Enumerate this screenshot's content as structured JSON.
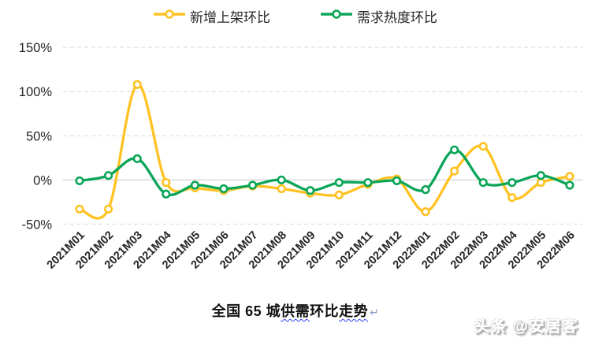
{
  "chart_data": {
    "type": "line",
    "title": "全国 65 城供需环比走势",
    "xlabel": "",
    "ylabel": "",
    "ylim": [
      -50,
      150
    ],
    "ytick_labels": [
      "150%",
      "100%",
      "50%",
      "0%",
      "-50%"
    ],
    "ytick_values": [
      150,
      100,
      50,
      0,
      -50
    ],
    "grid": "horizontal-dashed",
    "legend_position": "top-center",
    "line_style": "smooth-with-open-circle-markers",
    "categories": [
      "2021M01",
      "2021M02",
      "2021M03",
      "2021M04",
      "2021M05",
      "2021M06",
      "2021M07",
      "2021M08",
      "2021M09",
      "2021M10",
      "2021M11",
      "2021M12",
      "2022M01",
      "2022M02",
      "2022M03",
      "2022M04",
      "2022M05",
      "2022M06"
    ],
    "series": [
      {
        "name": "新增上架环比",
        "color": "#FFC222",
        "values": [
          -33,
          -33,
          108,
          -3,
          -9,
          -12,
          -7,
          -10,
          -15,
          -17,
          -5,
          1,
          -36,
          10,
          38,
          -20,
          -3,
          4
        ]
      },
      {
        "name": "需求热度环比",
        "color": "#0BA558",
        "values": [
          -1,
          5,
          24,
          -16,
          -6,
          -10,
          -6,
          0,
          -12,
          -3,
          -3,
          -1,
          -11,
          34,
          -3,
          -3,
          5,
          -6
        ]
      }
    ]
  },
  "title": {
    "prefix": "全国 65 城",
    "squiggle1": "供需",
    "mid": "环比",
    "squiggle2": "走势",
    "paragraph_mark": "↵"
  },
  "watermark": {
    "text": "头条 @安居客"
  },
  "colors": {
    "series_new_listings": "#FFC222",
    "series_demand_heat": "#0BA558",
    "grid_dashed": "#D9D9D9",
    "grid_zero": "#C8C8C8",
    "axis_text": "#262626",
    "title_text": "#111111"
  }
}
